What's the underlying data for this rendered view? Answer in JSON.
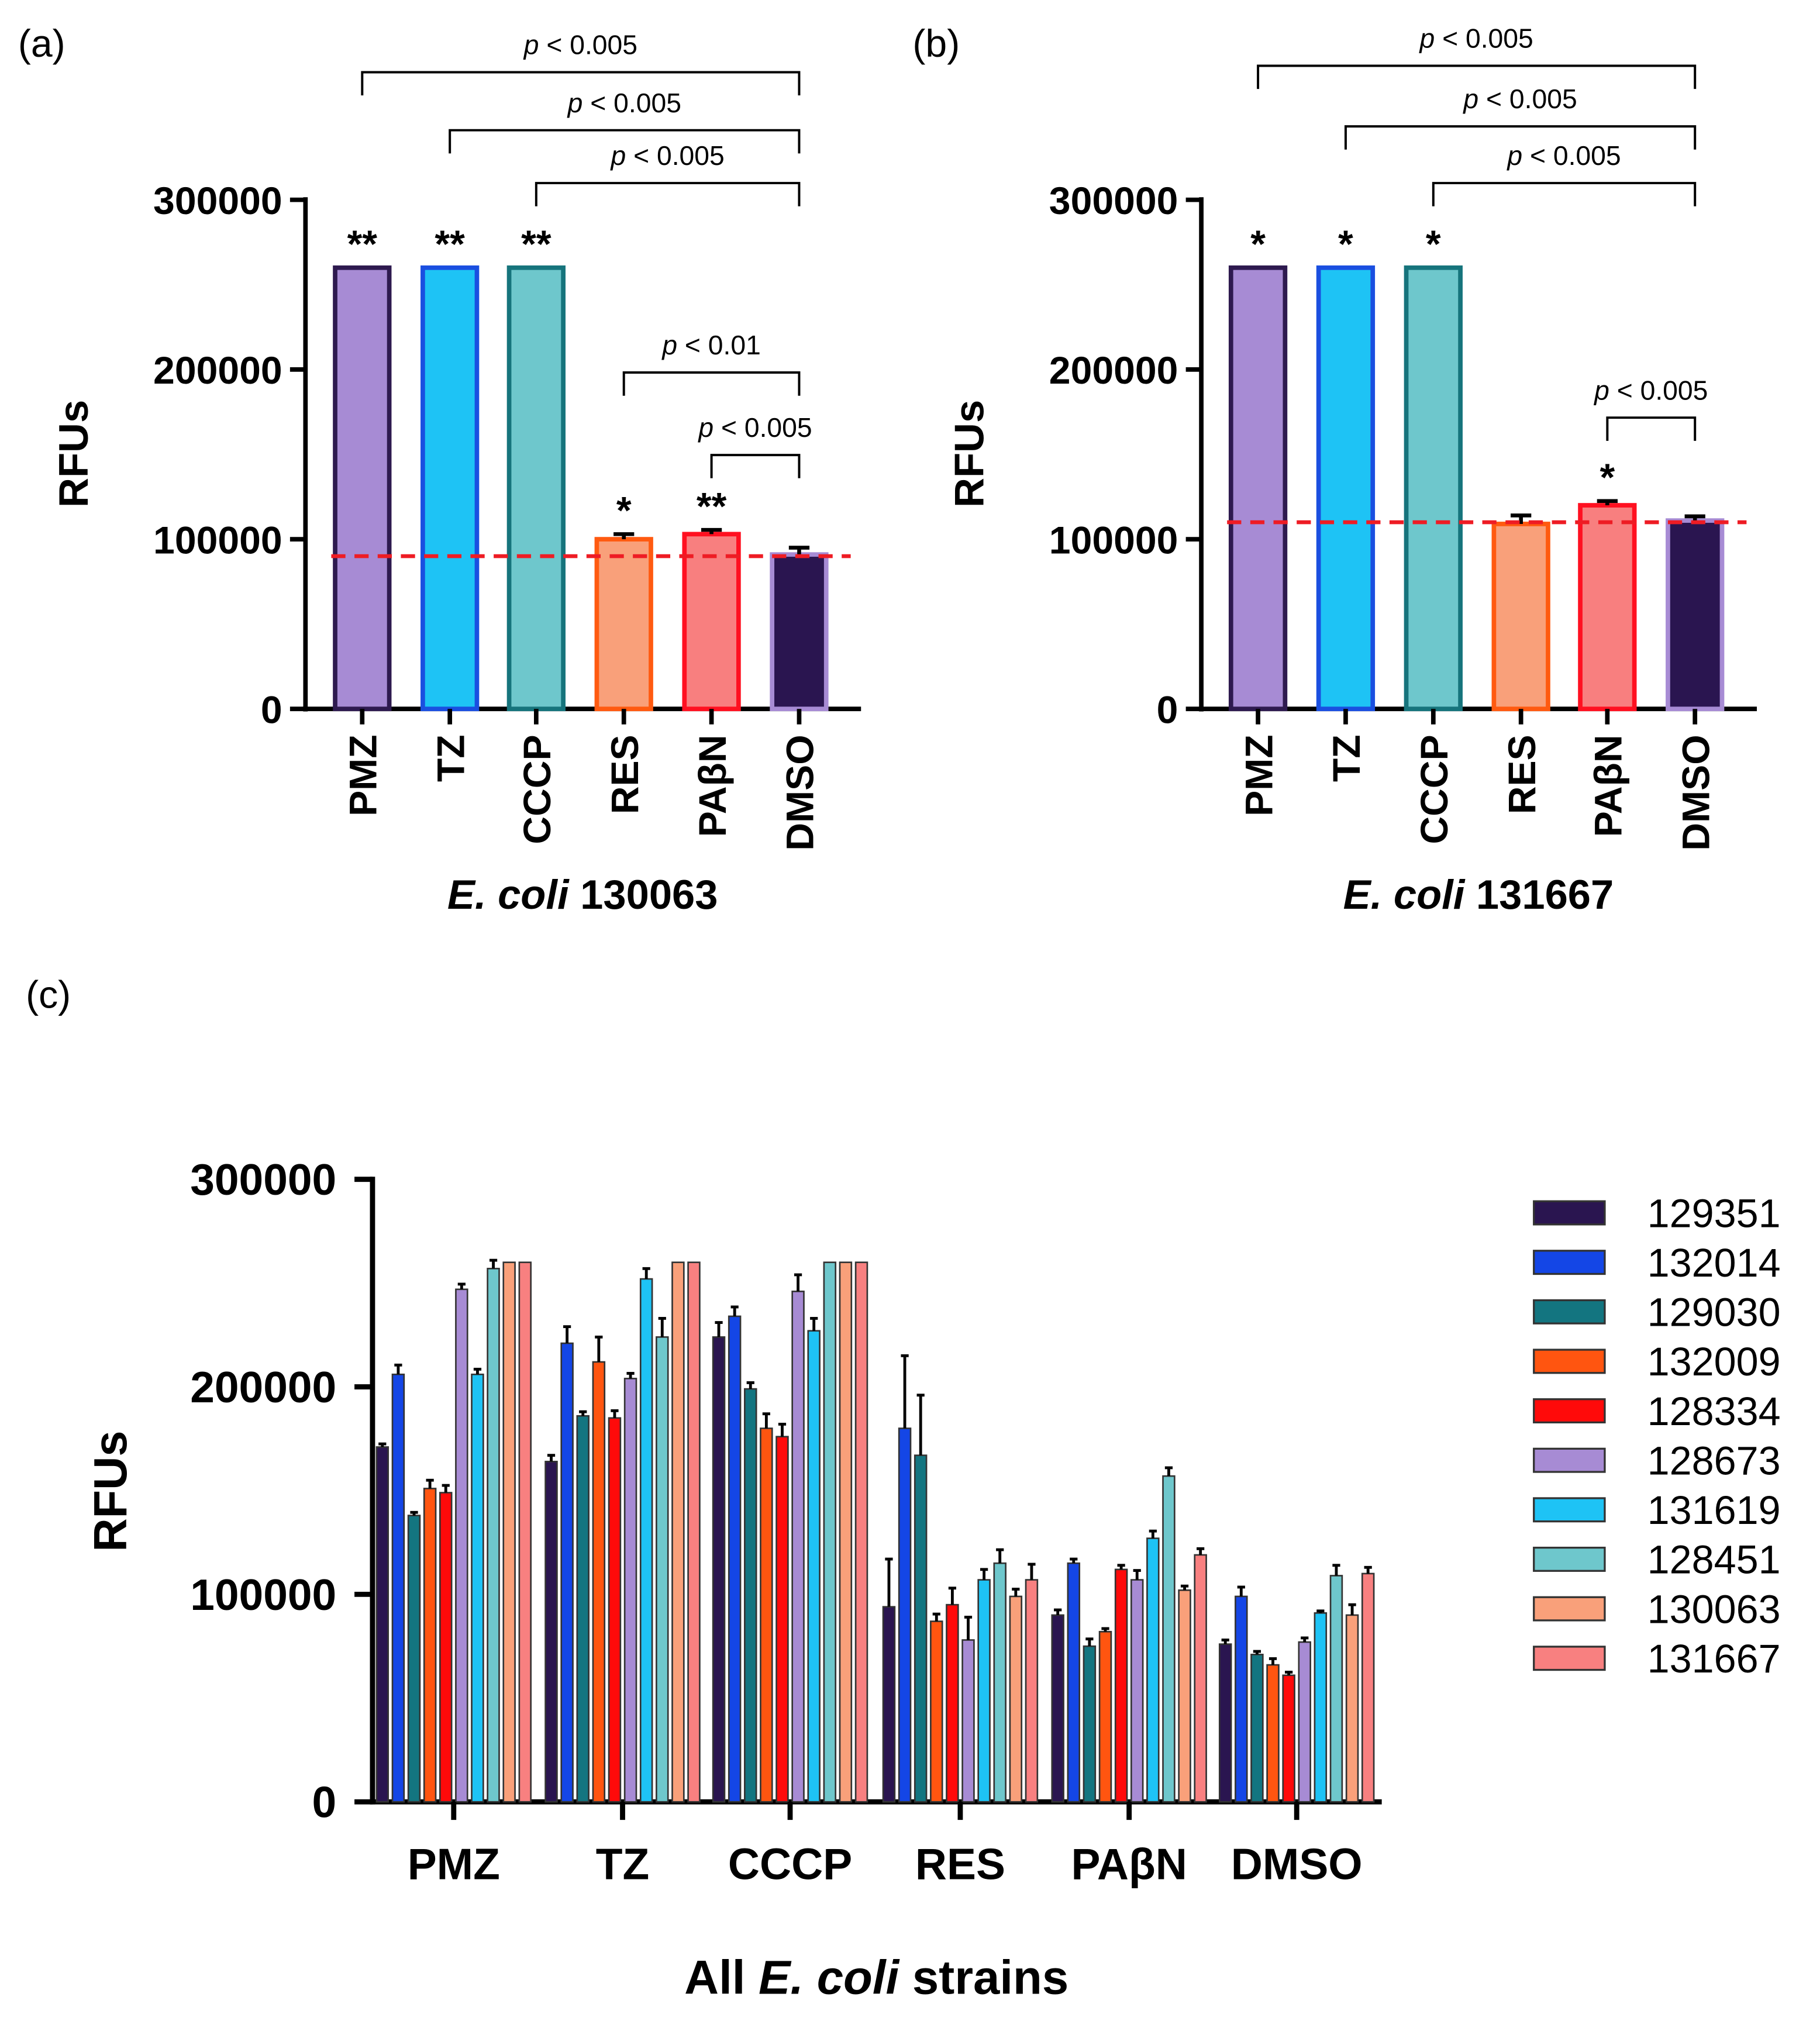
{
  "panel_labels": [
    "(a)",
    "(b)",
    "(c)"
  ],
  "chart_data": [
    {
      "type": "bar",
      "panel": "(a)",
      "title": "E. coli 130063",
      "title_italic": "E. coli",
      "title_rest": "130063",
      "xlabel": "E. coli 130063",
      "ylabel": "RFUs",
      "ylim": [
        0,
        300000
      ],
      "yticks": [
        "0",
        "100000",
        "200000",
        "300000"
      ],
      "categories": [
        "PMZ",
        "TZ",
        "CCCP",
        "RES",
        "PAβN",
        "DMSO"
      ],
      "values": [
        260000,
        260000,
        260000,
        100000,
        103000,
        91000
      ],
      "errors": [
        0,
        0,
        0,
        3000,
        2500,
        4000
      ],
      "fills": [
        "#a78bd4",
        "#1ec3f5",
        "#6ec7cc",
        "#f9a07a",
        "#f87f7f",
        "#2a1550"
      ],
      "strokes": [
        "#2e1a4f",
        "#1a4fe0",
        "#16747c",
        "#ff5a10",
        "#ff1020",
        "#a78bd4"
      ],
      "stars": [
        "**",
        "**",
        "**",
        "*",
        "**",
        ""
      ],
      "reference_line": {
        "value": 90000,
        "color": "#ee1c24"
      },
      "comparisons": [
        {
          "from": "PMZ",
          "to": "DMSO",
          "label": "p < 0.005",
          "level": 300000
        },
        {
          "from": "TZ",
          "to": "DMSO",
          "label": "p < 0.005",
          "level": 0
        },
        {
          "from": "CCCP",
          "to": "DMSO",
          "label": "p < 0.005",
          "level": 0
        }
      ],
      "brackets": [
        {
          "from": 0,
          "to": 5,
          "p": "p",
          "rest": " < 0.005"
        },
        {
          "from": 1,
          "to": 5,
          "p": "p",
          "rest": " < 0.005"
        },
        {
          "from": 2,
          "to": 5,
          "p": "p",
          "rest": " < 0.005"
        },
        {
          "from": 3,
          "to": 5,
          "p": "p",
          "rest": " < 0.01"
        },
        {
          "from": 4,
          "to": 5,
          "p": "p",
          "rest": " < 0.005"
        }
      ]
    },
    {
      "type": "bar",
      "panel": "(b)",
      "title": "E. coli 131667",
      "title_italic": "E. coli",
      "title_rest": "131667",
      "xlabel": "E. coli 131667",
      "ylabel": "RFUs",
      "ylim": [
        0,
        300000
      ],
      "yticks": [
        "0",
        "100000",
        "200000",
        "300000"
      ],
      "categories": [
        "PMZ",
        "TZ",
        "CCCP",
        "RES",
        "PAβN",
        "DMSO"
      ],
      "values": [
        260000,
        260000,
        260000,
        109000,
        120000,
        111000
      ],
      "errors": [
        0,
        0,
        0,
        5000,
        2500,
        2500
      ],
      "fills": [
        "#a78bd4",
        "#1ec3f5",
        "#6ec7cc",
        "#f9a07a",
        "#f87f7f",
        "#2a1550"
      ],
      "strokes": [
        "#2e1a4f",
        "#1a4fe0",
        "#16747c",
        "#ff5a10",
        "#ff1020",
        "#a78bd4"
      ],
      "stars": [
        "*",
        "*",
        "*",
        "",
        "*",
        ""
      ],
      "reference_line": {
        "value": 110000,
        "color": "#ee1c24"
      },
      "brackets": [
        {
          "from": 0,
          "to": 5,
          "p": "p",
          "rest": " < 0.005"
        },
        {
          "from": 1,
          "to": 5,
          "p": "p",
          "rest": " < 0.005"
        },
        {
          "from": 2,
          "to": 5,
          "p": "p",
          "rest": " < 0.005"
        },
        {
          "from": 4,
          "to": 5,
          "p": "p",
          "rest": " < 0.005"
        }
      ]
    },
    {
      "type": "bar",
      "panel": "(c)",
      "title": "All E. coli strains",
      "title_pre": "All ",
      "title_italic": "E. coli",
      "title_rest": " strains",
      "xlabel": "All E. coli strains",
      "ylabel": "RFUs",
      "ylim": [
        0,
        300000
      ],
      "yticks": [
        "0",
        "100000",
        "200000",
        "300000"
      ],
      "legend_position": "right",
      "categories": [
        "PMZ",
        "TZ",
        "CCCP",
        "RES",
        "PAβN",
        "DMSO"
      ],
      "series": [
        {
          "name": "129351",
          "color": "#2a1550",
          "values": [
            171000,
            164000,
            224000,
            94000,
            90000,
            76000
          ],
          "errors": [
            1500,
            3000,
            7000,
            23000,
            2500,
            2000
          ]
        },
        {
          "name": "132014",
          "color": "#1446e6",
          "values": [
            206000,
            221000,
            234000,
            180000,
            115000,
            99000
          ],
          "errors": [
            4500,
            8000,
            4500,
            35000,
            2000,
            4500
          ]
        },
        {
          "name": "129030",
          "color": "#137580",
          "values": [
            138000,
            186000,
            199000,
            167000,
            75000,
            71000
          ],
          "errors": [
            1500,
            2000,
            3000,
            29000,
            3500,
            1500
          ]
        },
        {
          "name": "132009",
          "color": "#ff5510",
          "values": [
            151000,
            212000,
            180000,
            87000,
            82000,
            66000
          ],
          "errors": [
            4000,
            12000,
            7000,
            3500,
            1500,
            3000
          ]
        },
        {
          "name": "128334",
          "color": "#ff0a0a",
          "values": [
            149000,
            185000,
            176000,
            95000,
            112000,
            61000
          ],
          "errors": [
            3500,
            3500,
            6000,
            8000,
            2000,
            1500
          ]
        },
        {
          "name": "128673",
          "color": "#a78bd4",
          "values": [
            247000,
            204000,
            246000,
            78000,
            107000,
            77000
          ],
          "errors": [
            2500,
            2500,
            8000,
            11000,
            4500,
            2000
          ]
        },
        {
          "name": "131619",
          "color": "#1ec3f5",
          "values": [
            206000,
            252000,
            227000,
            107000,
            127000,
            91000
          ],
          "errors": [
            2500,
            5000,
            6000,
            5000,
            3500,
            1000
          ]
        },
        {
          "name": "128451",
          "color": "#6ec7cc",
          "values": [
            257000,
            224000,
            260000,
            115000,
            157000,
            109000
          ],
          "errors": [
            4000,
            9000,
            0,
            6500,
            4000,
            5000
          ]
        },
        {
          "name": "130063",
          "color": "#f9a07a",
          "values": [
            260000,
            260000,
            260000,
            99000,
            102000,
            90000
          ],
          "errors": [
            0,
            0,
            0,
            3500,
            2000,
            5000
          ]
        },
        {
          "name": "131667",
          "color": "#f88080",
          "values": [
            260000,
            260000,
            260000,
            107000,
            119000,
            110000
          ],
          "errors": [
            0,
            0,
            0,
            7500,
            3000,
            3000
          ]
        }
      ]
    }
  ]
}
